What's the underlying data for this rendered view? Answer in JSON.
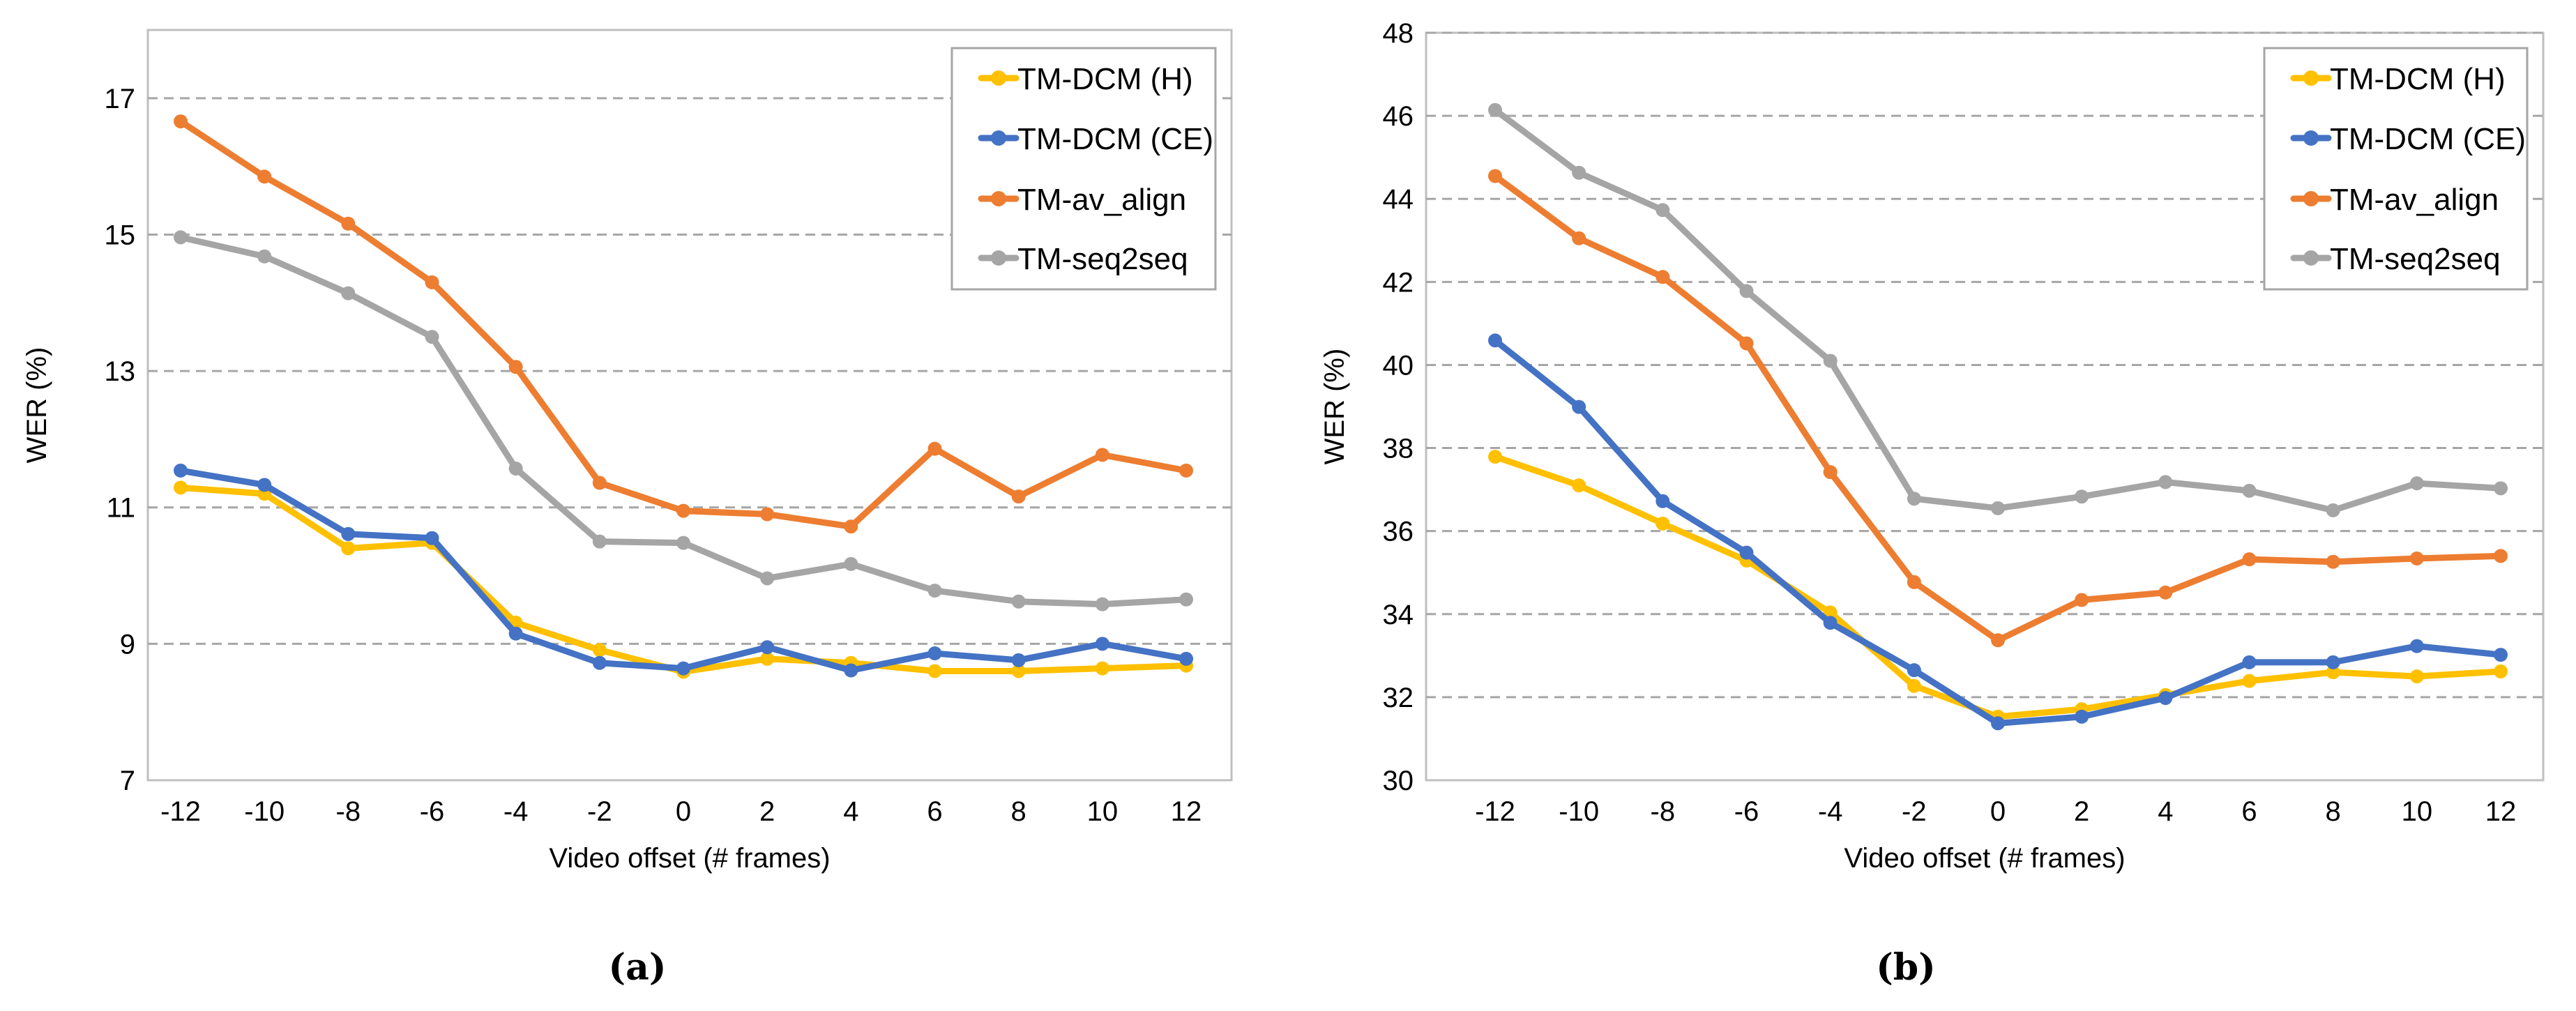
{
  "colors": {
    "TM-DCM (H)": "#FFC000",
    "TM-DCM (CE)": "#4472C4",
    "TM-av_align": "#ED7D31",
    "TM-seq2seq": "#A5A5A5",
    "grid": "#A6A6A6",
    "frame": "#BFBFBF"
  },
  "chart_data": [
    {
      "type": "line",
      "panel_label": "(a)",
      "xlabel": "Video offset (# frames)",
      "ylabel": "WER (%)",
      "ylim": [
        7,
        18
      ],
      "yticks": [
        7,
        9,
        11,
        13,
        15,
        17
      ],
      "grid": true,
      "legend": "top-right",
      "x": [
        -12,
        -10,
        -8,
        -6,
        -4,
        -2,
        0,
        2,
        4,
        6,
        8,
        10,
        12
      ],
      "series": [
        {
          "name": "TM-DCM (H)",
          "values": [
            11.29,
            11.2,
            10.4,
            10.48,
            9.31,
            8.91,
            8.59,
            8.78,
            8.72,
            8.6,
            8.6,
            8.64,
            8.68
          ]
        },
        {
          "name": "TM-DCM (CE)",
          "values": [
            11.54,
            11.33,
            10.61,
            10.55,
            9.15,
            8.72,
            8.64,
            8.95,
            8.61,
            8.86,
            8.76,
            9.0,
            8.78
          ]
        },
        {
          "name": "TM-av_align",
          "values": [
            16.66,
            15.85,
            15.16,
            14.3,
            13.06,
            11.36,
            10.95,
            10.9,
            10.72,
            11.86,
            11.16,
            11.77,
            11.54
          ]
        },
        {
          "name": "TM-seq2seq",
          "values": [
            14.96,
            14.68,
            14.14,
            13.5,
            11.57,
            10.5,
            10.48,
            9.96,
            10.17,
            9.78,
            9.62,
            9.58,
            9.65
          ]
        }
      ]
    },
    {
      "type": "line",
      "panel_label": "(b)",
      "xlabel": "Video offset (# frames)",
      "ylabel": "WER (%)",
      "ylim": [
        30,
        48
      ],
      "yticks": [
        30,
        32,
        34,
        36,
        38,
        40,
        42,
        44,
        46,
        48
      ],
      "grid": true,
      "legend": "top-right",
      "x": [
        -12,
        -10,
        -8,
        -6,
        -4,
        -2,
        0,
        2,
        4,
        6,
        8,
        10,
        12
      ],
      "series": [
        {
          "name": "TM-DCM (H)",
          "values": [
            37.79,
            37.1,
            36.18,
            35.29,
            34.04,
            32.27,
            31.53,
            31.71,
            32.05,
            32.39,
            32.6,
            32.5,
            32.62
          ]
        },
        {
          "name": "TM-DCM (CE)",
          "values": [
            40.59,
            38.99,
            36.72,
            35.48,
            33.79,
            32.65,
            31.37,
            31.53,
            31.98,
            32.84,
            32.84,
            33.23,
            33.02
          ]
        },
        {
          "name": "TM-av_align",
          "values": [
            44.55,
            43.05,
            42.12,
            40.52,
            37.42,
            34.77,
            33.37,
            34.34,
            34.52,
            35.32,
            35.26,
            35.34,
            35.4
          ]
        },
        {
          "name": "TM-seq2seq",
          "values": [
            46.14,
            44.63,
            43.73,
            41.78,
            40.1,
            36.78,
            36.55,
            36.83,
            37.18,
            36.97,
            36.5,
            37.15,
            37.03
          ]
        }
      ]
    }
  ]
}
